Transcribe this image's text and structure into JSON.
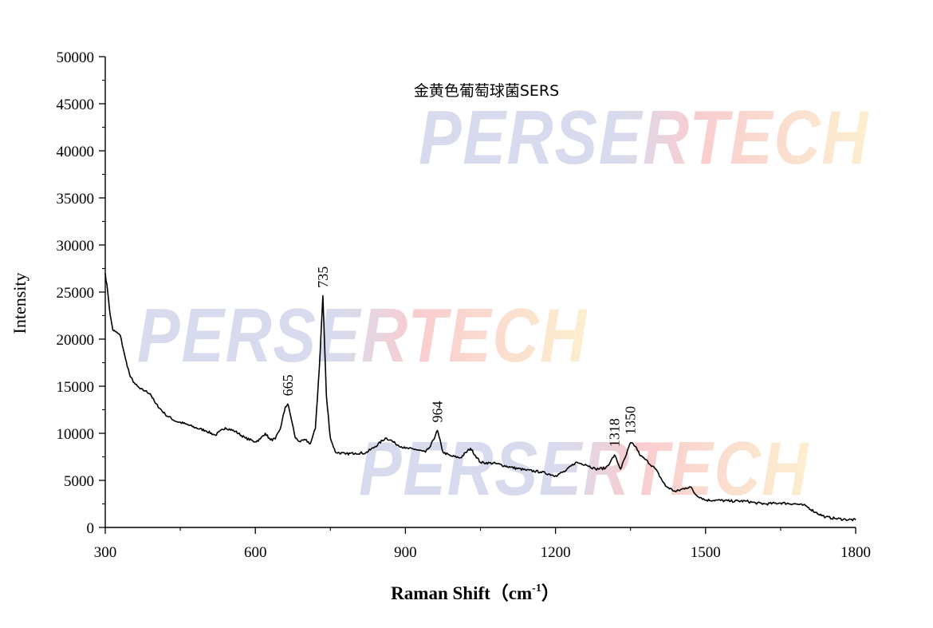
{
  "chart_data": {
    "type": "line",
    "title": "金黄色葡萄球菌SERS",
    "xlabel": "Raman Shift（cm",
    "xlabel_sup": "-1",
    "xlabel_close": "）",
    "ylabel": "Intensity",
    "xlim": [
      300,
      1800
    ],
    "ylim": [
      0,
      50000
    ],
    "x_ticks": [
      300,
      600,
      900,
      1200,
      1500,
      1800
    ],
    "y_ticks": [
      0,
      5000,
      10000,
      15000,
      20000,
      25000,
      30000,
      35000,
      40000,
      45000,
      50000
    ],
    "grid": false,
    "series": [
      {
        "x": [
          300,
          305,
          310,
          315,
          320,
          330,
          340,
          350,
          360,
          370,
          380,
          390,
          400,
          420,
          440,
          460,
          480,
          500,
          520,
          540,
          560,
          580,
          600,
          610,
          620,
          630,
          640,
          650,
          660,
          665,
          670,
          680,
          690,
          700,
          710,
          720,
          728,
          735,
          742,
          750,
          760,
          780,
          800,
          820,
          840,
          860,
          870,
          880,
          900,
          920,
          940,
          950,
          964,
          975,
          990,
          1010,
          1030,
          1050,
          1080,
          1110,
          1140,
          1170,
          1200,
          1220,
          1240,
          1260,
          1280,
          1300,
          1310,
          1318,
          1330,
          1340,
          1350,
          1360,
          1370,
          1380,
          1400,
          1420,
          1440,
          1460,
          1470,
          1480,
          1500,
          1520,
          1550,
          1580,
          1600,
          1620,
          1650,
          1680,
          1700,
          1720,
          1740,
          1760,
          1780,
          1800
        ],
        "values": [
          27000,
          25000,
          22500,
          21000,
          20800,
          20400,
          18000,
          16000,
          15200,
          14700,
          14500,
          14200,
          13200,
          12000,
          11300,
          11000,
          10600,
          10300,
          9800,
          10600,
          10200,
          9500,
          9100,
          9400,
          10000,
          9300,
          9400,
          10500,
          12800,
          13100,
          12000,
          9500,
          9100,
          9300,
          8900,
          10500,
          17000,
          24600,
          14000,
          9500,
          8000,
          7800,
          7900,
          7900,
          8600,
          9500,
          9300,
          8900,
          8400,
          8300,
          8000,
          8600,
          10300,
          8000,
          7600,
          7400,
          8400,
          6900,
          6800,
          6400,
          6100,
          5900,
          5500,
          6000,
          6900,
          6700,
          6200,
          6300,
          7000,
          7700,
          6200,
          7500,
          9000,
          8600,
          7600,
          7200,
          6200,
          4400,
          3800,
          4200,
          4300,
          3500,
          2900,
          2900,
          2800,
          2800,
          2600,
          2500,
          2600,
          2500,
          2300,
          1600,
          1100,
          950,
          850,
          800
        ]
      }
    ],
    "annotations": [
      {
        "x": 665,
        "y": 13100,
        "text": "665"
      },
      {
        "x": 735,
        "y": 24600,
        "text": "735"
      },
      {
        "x": 964,
        "y": 10300,
        "text": "964"
      },
      {
        "x": 1318,
        "y": 7700,
        "text": "1318"
      },
      {
        "x": 1350,
        "y": 9000,
        "text": "1350"
      }
    ]
  },
  "watermark": "PERSERTECH",
  "colors": {
    "line": "#000000",
    "axis": "#000000",
    "wm_blue": "#b9bfe0",
    "wm_red": "#f6a4a8",
    "wm_yellow": "#fbe3a8"
  }
}
